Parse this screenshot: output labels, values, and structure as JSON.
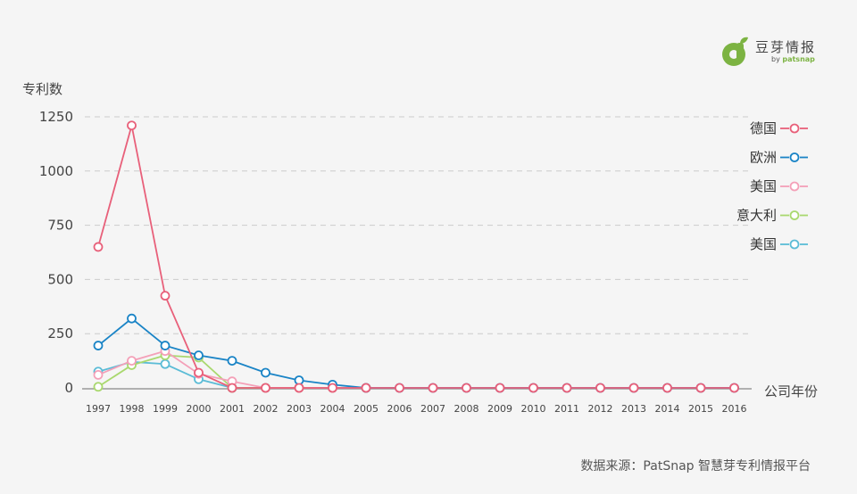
{
  "logo": {
    "name": "豆芽情报",
    "by": "by",
    "brand": "patsnap"
  },
  "source": "数据来源：PatSnap 智慧芽专利情报平台",
  "chart_data": {
    "type": "line",
    "ylabel": "专利数",
    "xlabel": "公司年份",
    "ylim": [
      0,
      1250
    ],
    "yticks": [
      0,
      250,
      500,
      750,
      1000,
      1250
    ],
    "grid": "horizontal dashed",
    "legend_position": "right",
    "x": [
      "1997",
      "1998",
      "1999",
      "2000",
      "2001",
      "2002",
      "2003",
      "2004",
      "2005",
      "2006",
      "2007",
      "2008",
      "2009",
      "2010",
      "2011",
      "2012",
      "2013",
      "2014",
      "2015",
      "2016"
    ],
    "series": [
      {
        "name": "美国",
        "color": "#5bbcd6",
        "values": [
          75,
          120,
          110,
          40,
          0,
          0,
          0,
          0,
          0,
          null,
          null,
          null,
          null,
          null,
          null,
          null,
          null,
          null,
          null,
          null
        ]
      },
      {
        "name": "意大利",
        "color": "#a9d86e",
        "values": [
          5,
          105,
          150,
          140,
          0,
          0,
          0,
          0,
          0,
          null,
          null,
          null,
          null,
          null,
          null,
          null,
          null,
          null,
          null,
          null
        ]
      },
      {
        "name": "美国",
        "color": "#f4a0b8",
        "values": [
          60,
          125,
          170,
          65,
          30,
          0,
          0,
          0,
          0,
          null,
          null,
          null,
          null,
          null,
          null,
          null,
          null,
          null,
          null,
          null
        ]
      },
      {
        "name": "欧洲",
        "color": "#1a84c6",
        "values": [
          195,
          320,
          195,
          150,
          125,
          70,
          35,
          15,
          0,
          0,
          0,
          0,
          0,
          0,
          0,
          0,
          0,
          0,
          0,
          0
        ]
      },
      {
        "name": "德国",
        "color": "#e8607a",
        "values": [
          650,
          1210,
          425,
          70,
          0,
          0,
          0,
          0,
          0,
          0,
          0,
          0,
          0,
          0,
          0,
          0,
          0,
          0,
          0,
          0
        ]
      }
    ],
    "legend_order": [
      4,
      3,
      2,
      1,
      0
    ]
  }
}
